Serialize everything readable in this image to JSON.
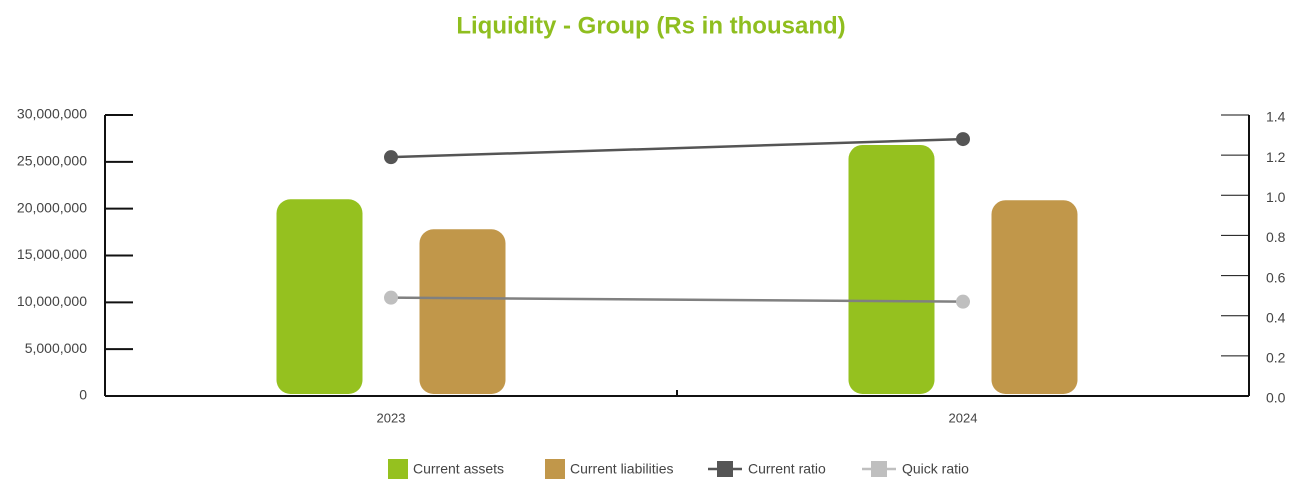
{
  "chart_data": {
    "type": "bar_line",
    "title": "Liquidity - Group  (Rs in thousand)",
    "categories": [
      "2023",
      "2024"
    ],
    "series": [
      {
        "name": "Current assets",
        "color": "#95c11f",
        "values": [
          21000000,
          26800000
        ]
      },
      {
        "name": "Current liabilities",
        "color": "#c1974a",
        "values": [
          17800000,
          20900000
        ]
      },
      {
        "name": "Current ratio",
        "color": "#555555",
        "axis": "y2",
        "values": [
          1.19,
          1.28
        ]
      },
      {
        "name": "Quick ratio",
        "color": "#bfbfbf",
        "axis": "y2",
        "values": [
          0.49,
          0.47
        ]
      }
    ],
    "ylim": [
      0,
      30000000
    ],
    "yticks": [
      0,
      {
        "value": 5000000,
        "label": "5,000,000"
      },
      {
        "value": 10000000,
        "label": "10,000,000"
      },
      {
        "value": 15000000,
        "label": "15,000,000"
      },
      {
        "value": 20000000,
        "label": "20,000,000"
      },
      {
        "value": 25000000,
        "label": "25,000,000"
      },
      {
        "value": 30000000,
        "label": "30,000,000"
      }
    ],
    "y2lim": [
      0,
      1.4
    ],
    "y2ticks": [
      {
        "value": 0,
        "label": "0.0"
      },
      0.2,
      0.4,
      0.6,
      0.8,
      {
        "value": 1,
        "label": "1.0"
      },
      1.2,
      1.4
    ],
    "legend": "bottom"
  }
}
